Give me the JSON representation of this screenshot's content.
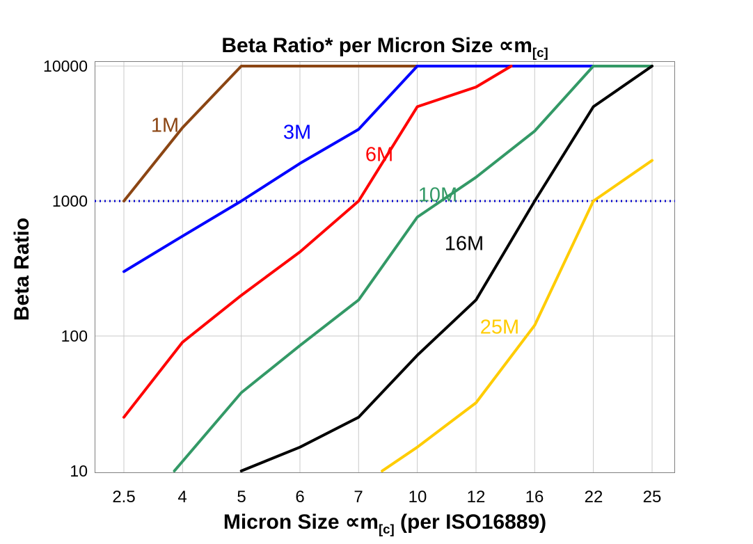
{
  "title": {
    "part1": "Beta Ratio* per Micron Size ",
    "symbol": "∝m",
    "sub": "[c]"
  },
  "x_axis": {
    "part1": "Micron Size ",
    "symbol": "∝m",
    "sub": "[c]",
    "part2": " (per ISO16889)"
  },
  "y_axis": {
    "label": "Beta Ratio"
  },
  "chart_data": {
    "type": "line",
    "title": "Beta Ratio* per Micron Size ∝m[c]",
    "xlabel": "Micron Size ∝m[c] (per ISO16889)",
    "ylabel": "Beta Ratio",
    "x_categories": [
      "2.5",
      "4",
      "5",
      "6",
      "7",
      "10",
      "12",
      "16",
      "22",
      "25"
    ],
    "x_unit": "category_index",
    "y_scale": "log",
    "ylim": [
      10,
      10000
    ],
    "y_ticks": [
      10,
      100,
      1000,
      10000
    ],
    "grid": true,
    "gridline_color": "#c9c9c9",
    "border_color": "#7f7f7f",
    "legend_position": "inline-labels",
    "reference_line": {
      "value": 1000,
      "color": "#0000cc",
      "style": "dotted"
    },
    "series": [
      {
        "name": "1M",
        "color": "#8B4513",
        "points": [
          [
            0,
            1000
          ],
          [
            1,
            3500
          ],
          [
            2,
            10000
          ],
          [
            5,
            10000
          ]
        ],
        "label_at": [
          0.7,
          3600
        ]
      },
      {
        "name": "3M",
        "color": "#0000ff",
        "points": [
          [
            0,
            300
          ],
          [
            1,
            550
          ],
          [
            2,
            1000
          ],
          [
            3,
            1900
          ],
          [
            4,
            3400
          ],
          [
            5,
            10000
          ],
          [
            8,
            10000
          ]
        ],
        "label_at": [
          2.95,
          3200
        ]
      },
      {
        "name": "6M",
        "color": "#ff0000",
        "points": [
          [
            0,
            25
          ],
          [
            1,
            90
          ],
          [
            2,
            200
          ],
          [
            3,
            420
          ],
          [
            4,
            1000
          ],
          [
            5,
            5000
          ],
          [
            6,
            7000
          ],
          [
            6.6,
            10000
          ]
        ],
        "label_at": [
          4.35,
          2200
        ]
      },
      {
        "name": "10M",
        "color": "#339966",
        "points": [
          [
            0.86,
            10
          ],
          [
            2,
            38
          ],
          [
            3,
            85
          ],
          [
            4,
            185
          ],
          [
            5,
            760
          ],
          [
            6,
            1500
          ],
          [
            7,
            3300
          ],
          [
            8,
            10000
          ],
          [
            9,
            10000
          ]
        ],
        "label_at": [
          5.35,
          1100
        ]
      },
      {
        "name": "16M",
        "color": "#000000",
        "points": [
          [
            2,
            10
          ],
          [
            3,
            15
          ],
          [
            4,
            25
          ],
          [
            5,
            72
          ],
          [
            6,
            185
          ],
          [
            7,
            1000
          ],
          [
            8,
            5000
          ],
          [
            9,
            10000
          ]
        ],
        "label_at": [
          5.8,
          480
        ]
      },
      {
        "name": "25M",
        "color": "#ffcc00",
        "points": [
          [
            4.4,
            10
          ],
          [
            5,
            15
          ],
          [
            6,
            32
          ],
          [
            7,
            120
          ],
          [
            8,
            1000
          ],
          [
            9,
            2000
          ]
        ],
        "label_at": [
          6.4,
          115
        ]
      }
    ]
  }
}
